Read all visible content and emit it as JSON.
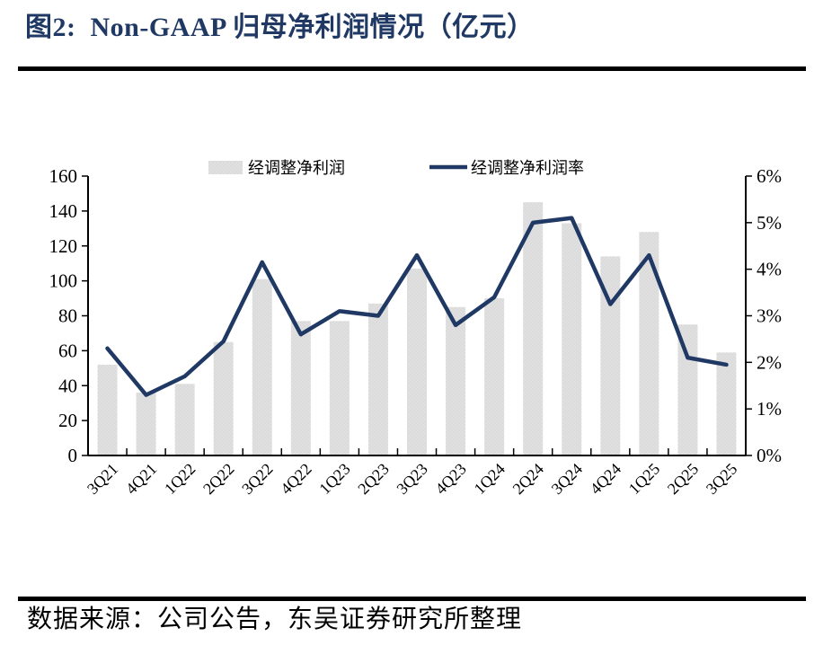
{
  "figure": {
    "title": "图2:  Non-GAAP 归母净利润情况（亿元）",
    "source": "数据来源：公司公告，东吴证券研究所整理"
  },
  "colors": {
    "title": "#1f3864",
    "line": "#1f3864",
    "bar_fill": "#dbdbdb",
    "bar_dot": "#ffffff",
    "axis": "#000000",
    "text": "#000000",
    "rule": "#000000"
  },
  "chart_data": {
    "type": "bar+line",
    "title": "Non-GAAP 归母净利润情况（亿元）",
    "categories": [
      "3Q21",
      "4Q21",
      "1Q22",
      "2Q22",
      "3Q22",
      "4Q22",
      "1Q23",
      "2Q23",
      "3Q23",
      "4Q23",
      "1Q24",
      "2Q24",
      "3Q24",
      "4Q24",
      "1Q25",
      "2Q25",
      "3Q25"
    ],
    "series": [
      {
        "name": "经调整净利润",
        "type": "bar",
        "axis": "left",
        "unit": "亿元",
        "values": [
          52,
          36,
          41,
          65,
          101,
          77,
          77,
          87,
          107,
          85,
          90,
          145,
          133,
          114,
          128,
          75,
          59
        ]
      },
      {
        "name": "经调整净利润率",
        "type": "line",
        "axis": "right",
        "unit": "%",
        "values": [
          2.3,
          1.3,
          1.7,
          2.45,
          4.15,
          2.6,
          3.1,
          3.0,
          4.3,
          2.8,
          3.4,
          5.0,
          5.1,
          3.25,
          4.3,
          2.1,
          1.95
        ]
      }
    ],
    "left_axis": {
      "min": 0,
      "max": 160,
      "step": 20,
      "tick_labels": [
        "0",
        "20",
        "40",
        "60",
        "80",
        "100",
        "120",
        "140",
        "160"
      ]
    },
    "right_axis": {
      "min": 0,
      "max": 6,
      "step": 1,
      "tick_labels": [
        "0%",
        "1%",
        "2%",
        "3%",
        "4%",
        "5%",
        "6%"
      ]
    },
    "legend_position": "top",
    "grid": false,
    "x_label_rotation_deg": -45
  }
}
